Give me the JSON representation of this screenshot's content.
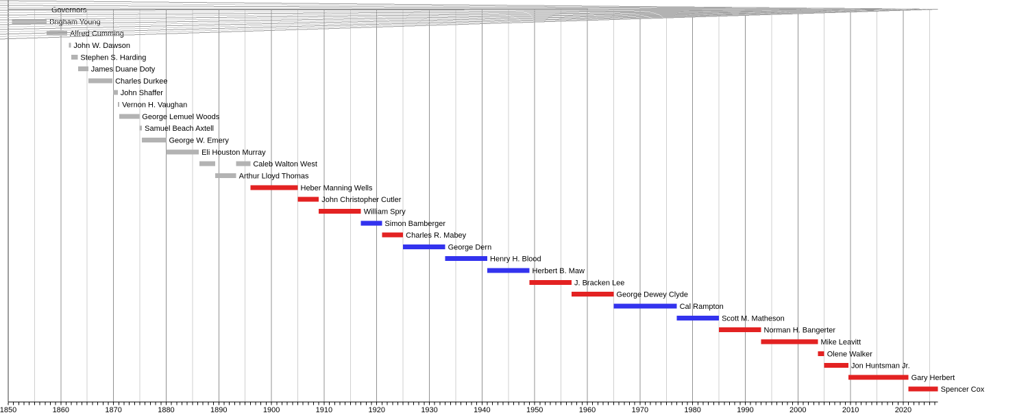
{
  "chart_data": {
    "type": "bar",
    "subtype": "timeline-gantt",
    "title": "Governors",
    "section_label": "Governors",
    "xlabel": "",
    "ylabel": "",
    "xlim": [
      1850,
      2026.6
    ],
    "grid": "vertical, every 5 years, darker each decade",
    "axis_tick_interval_years": 1,
    "axis_label_interval_years": 10,
    "axis_tick_labels": [
      "1850",
      "1860",
      "1870",
      "1880",
      "1890",
      "1900",
      "1910",
      "1920",
      "1930",
      "1940",
      "1950",
      "1960",
      "1970",
      "1980",
      "1990",
      "2000",
      "2010",
      "2020"
    ],
    "party_colors": {
      "territorial": "#b3b3b3",
      "republican": "#e32222",
      "democratic": "#3333ee"
    },
    "governors": [
      {
        "name": "Brigham Young",
        "party": "territorial",
        "terms": [
          [
            1850.7,
            1857.3
          ]
        ]
      },
      {
        "name": "Alfred Cumming",
        "party": "territorial",
        "terms": [
          [
            1857.3,
            1861.2
          ]
        ]
      },
      {
        "name": "John W. Dawson",
        "party": "territorial",
        "terms": [
          [
            1861.5,
            1861.9
          ]
        ]
      },
      {
        "name": "Stephen S. Harding",
        "party": "territorial",
        "terms": [
          [
            1862.0,
            1863.2
          ]
        ]
      },
      {
        "name": "James Duane Doty",
        "party": "territorial",
        "terms": [
          [
            1863.3,
            1865.2
          ]
        ]
      },
      {
        "name": "Charles Durkee",
        "party": "territorial",
        "terms": [
          [
            1865.2,
            1869.8
          ]
        ]
      },
      {
        "name": "John Shaffer",
        "party": "territorial",
        "terms": [
          [
            1869.9,
            1870.8
          ]
        ]
      },
      {
        "name": "Vernon H. Vaughan",
        "party": "territorial",
        "terms": [
          [
            1870.8,
            1871.1
          ]
        ]
      },
      {
        "name": "George Lemuel Woods",
        "party": "territorial",
        "terms": [
          [
            1871.1,
            1874.9
          ]
        ]
      },
      {
        "name": "Samuel Beach Axtell",
        "party": "territorial",
        "terms": [
          [
            1874.9,
            1875.4
          ]
        ]
      },
      {
        "name": "George W. Emery",
        "party": "territorial",
        "terms": [
          [
            1875.4,
            1880.0
          ]
        ]
      },
      {
        "name": "Eli Houston Murray",
        "party": "territorial",
        "terms": [
          [
            1880.0,
            1886.2
          ]
        ]
      },
      {
        "name": "Caleb Walton West",
        "party": "territorial",
        "terms": [
          [
            1886.3,
            1889.3
          ],
          [
            1893.3,
            1896.0
          ]
        ]
      },
      {
        "name": "Arthur Lloyd Thomas",
        "party": "territorial",
        "terms": [
          [
            1889.3,
            1893.3
          ]
        ]
      },
      {
        "name": "Heber Manning Wells",
        "party": "republican",
        "terms": [
          [
            1896.0,
            1905.0
          ]
        ]
      },
      {
        "name": "John Christopher Cutler",
        "party": "republican",
        "terms": [
          [
            1905.0,
            1909.0
          ]
        ]
      },
      {
        "name": "William Spry",
        "party": "republican",
        "terms": [
          [
            1909.0,
            1917.0
          ]
        ]
      },
      {
        "name": "Simon Bamberger",
        "party": "democratic",
        "terms": [
          [
            1917.0,
            1921.0
          ]
        ]
      },
      {
        "name": "Charles R. Mabey",
        "party": "republican",
        "terms": [
          [
            1921.0,
            1925.0
          ]
        ]
      },
      {
        "name": "George Dern",
        "party": "democratic",
        "terms": [
          [
            1925.0,
            1933.0
          ]
        ]
      },
      {
        "name": "Henry H. Blood",
        "party": "democratic",
        "terms": [
          [
            1933.0,
            1941.0
          ]
        ]
      },
      {
        "name": "Herbert B. Maw",
        "party": "democratic",
        "terms": [
          [
            1941.0,
            1949.0
          ]
        ]
      },
      {
        "name": "J. Bracken Lee",
        "party": "republican",
        "terms": [
          [
            1949.0,
            1957.0
          ]
        ]
      },
      {
        "name": "George Dewey Clyde",
        "party": "republican",
        "terms": [
          [
            1957.0,
            1965.0
          ]
        ]
      },
      {
        "name": "Cal Rampton",
        "party": "democratic",
        "terms": [
          [
            1965.0,
            1977.0
          ]
        ]
      },
      {
        "name": "Scott M. Matheson",
        "party": "democratic",
        "terms": [
          [
            1977.0,
            1985.0
          ]
        ]
      },
      {
        "name": "Norman H. Bangerter",
        "party": "republican",
        "terms": [
          [
            1985.0,
            1993.0
          ]
        ]
      },
      {
        "name": "Mike Leavitt",
        "party": "republican",
        "terms": [
          [
            1993.0,
            2003.8
          ]
        ]
      },
      {
        "name": "Olene Walker",
        "party": "republican",
        "terms": [
          [
            2003.8,
            2005.0
          ]
        ]
      },
      {
        "name": "Jon Huntsman Jr.",
        "party": "republican",
        "terms": [
          [
            2005.0,
            2009.6
          ]
        ]
      },
      {
        "name": "Gary Herbert",
        "party": "republican",
        "terms": [
          [
            2009.6,
            2021.0
          ]
        ]
      },
      {
        "name": "Spencer Cox",
        "party": "republican",
        "terms": [
          [
            2021.0,
            2026.6
          ]
        ]
      }
    ],
    "style_colors": {
      "axis": "#000000",
      "gridline_start_year": "#3a3a3a",
      "gridline_decade": "#909090",
      "gridline_5year": "#cfcfcf",
      "fan_line_dark": "#9b9b9b",
      "fan_line_light": "#c8c8c8",
      "label_text": "#000000"
    }
  }
}
